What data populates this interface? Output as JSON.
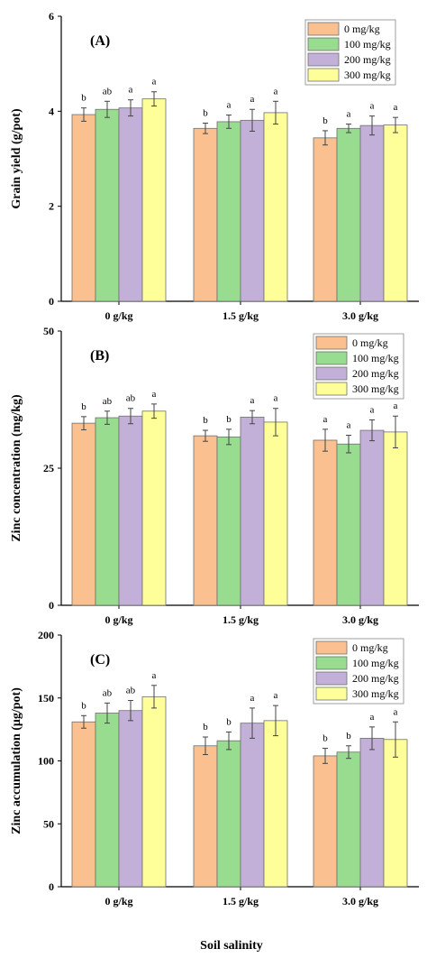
{
  "xlabel": "Soil salinity",
  "colors": [
    "#FBC08F",
    "#97DC8F",
    "#C3B0D9",
    "#FFFF99"
  ],
  "chart_data": [
    {
      "type": "bar",
      "panel": "(A)",
      "ylabel": "Grain yield (g/pot)",
      "ylim": [
        0,
        6
      ],
      "yticks": [
        "0",
        "2",
        "4",
        "6"
      ],
      "categories": [
        "0 g/kg",
        "1.5 g/kg",
        "3.0 g/kg"
      ],
      "series": [
        {
          "name": "0 mg/kg",
          "values": [
            3.93,
            3.64,
            3.44
          ],
          "errors": [
            0.14,
            0.11,
            0.15
          ],
          "letters": [
            "b",
            "b",
            "b"
          ]
        },
        {
          "name": "100 mg/kg",
          "values": [
            4.04,
            3.78,
            3.64
          ],
          "errors": [
            0.17,
            0.14,
            0.09
          ],
          "letters": [
            "ab",
            "a",
            "a"
          ]
        },
        {
          "name": "200 mg/kg",
          "values": [
            4.07,
            3.81,
            3.7
          ],
          "errors": [
            0.17,
            0.23,
            0.2
          ],
          "letters": [
            "a",
            "a",
            "a"
          ]
        },
        {
          "name": "300 mg/kg",
          "values": [
            4.26,
            3.97,
            3.71
          ],
          "errors": [
            0.15,
            0.24,
            0.16
          ],
          "letters": [
            "a",
            "a",
            "a"
          ]
        }
      ]
    },
    {
      "type": "bar",
      "panel": "(B)",
      "ylabel": "Zinc concentration (mg/kg)",
      "ylim": [
        0,
        50
      ],
      "yticks": [
        "0",
        "25",
        "50"
      ],
      "categories": [
        "0 g/kg",
        "1.5 g/kg",
        "3.0 g/kg"
      ],
      "series": [
        {
          "name": "0 mg/kg",
          "values": [
            33.2,
            30.9,
            30.1
          ],
          "errors": [
            1.2,
            1.0,
            2.0
          ],
          "letters": [
            "b",
            "b",
            "a"
          ]
        },
        {
          "name": "100 mg/kg",
          "values": [
            34.2,
            30.7,
            29.4
          ],
          "errors": [
            1.2,
            1.4,
            1.6
          ],
          "letters": [
            "ab",
            "b",
            "a"
          ]
        },
        {
          "name": "200 mg/kg",
          "values": [
            34.5,
            34.3,
            31.9
          ],
          "errors": [
            1.4,
            1.2,
            1.9
          ],
          "letters": [
            "ab",
            "a",
            "a"
          ]
        },
        {
          "name": "300 mg/kg",
          "values": [
            35.4,
            33.4,
            31.6
          ],
          "errors": [
            1.3,
            2.5,
            2.9
          ],
          "letters": [
            "a",
            "a",
            "a"
          ]
        }
      ]
    },
    {
      "type": "bar",
      "panel": "(C)",
      "ylabel": "Zinc accumulation (μg/pot)",
      "ylim": [
        0,
        200
      ],
      "yticks": [
        "0",
        "50",
        "100",
        "150",
        "200"
      ],
      "categories": [
        "0 g/kg",
        "1.5 g/kg",
        "3.0 g/kg"
      ],
      "series": [
        {
          "name": "0 mg/kg",
          "values": [
            131,
            112,
            104
          ],
          "errors": [
            5,
            7,
            6
          ],
          "letters": [
            "b",
            "b",
            "b"
          ]
        },
        {
          "name": "100 mg/kg",
          "values": [
            138,
            116,
            107
          ],
          "errors": [
            8,
            7,
            5
          ],
          "letters": [
            "ab",
            "b",
            "b"
          ]
        },
        {
          "name": "200 mg/kg",
          "values": [
            140,
            130,
            118
          ],
          "errors": [
            8,
            12,
            9
          ],
          "letters": [
            "ab",
            "a",
            "a"
          ]
        },
        {
          "name": "300 mg/kg",
          "values": [
            151,
            132,
            117
          ],
          "errors": [
            9,
            12,
            14
          ],
          "letters": [
            "a",
            "a",
            "a"
          ]
        }
      ]
    }
  ]
}
